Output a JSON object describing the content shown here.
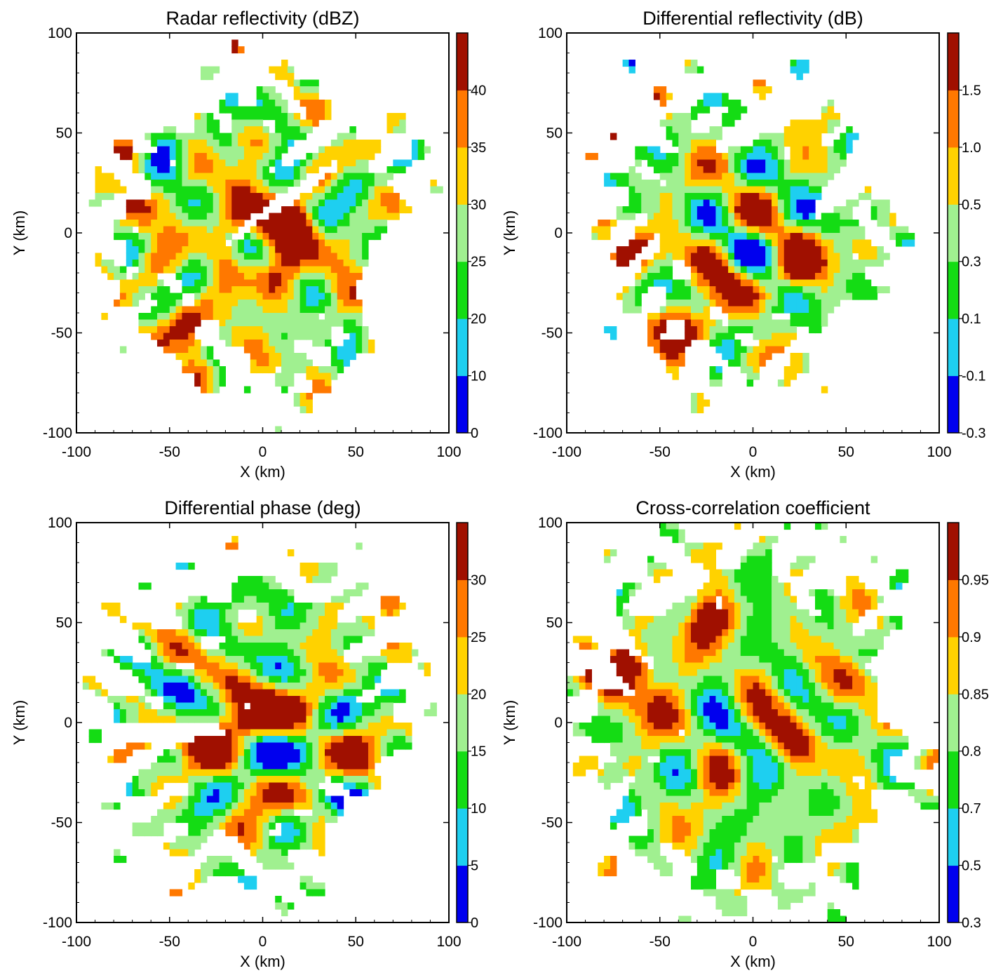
{
  "chart_data": [
    {
      "type": "heatmap",
      "title": "Radar reflectivity (dBZ)",
      "xlabel": "X (km)",
      "ylabel": "Y (km)",
      "xlim": [
        -100,
        100
      ],
      "ylim": [
        -100,
        100
      ],
      "xticks": [
        "-100",
        "-50",
        "0",
        "50",
        "100"
      ],
      "yticks": [
        "-100",
        "-50",
        "0",
        "50",
        "100"
      ],
      "colorbar": {
        "labels": [
          "0",
          "10",
          "20",
          "25",
          "30",
          "35",
          "40"
        ],
        "colors": [
          "#0000ee",
          "#1ecff0",
          "#14dc14",
          "#a0f090",
          "#ffd200",
          "#ff7800",
          "#a01000"
        ]
      },
      "features": {
        "coverage": 0.62,
        "seed": 11,
        "hotspots": [
          [
            -85,
            72,
            1
          ],
          [
            -15,
            8,
            0.9
          ],
          [
            5,
            -20,
            1
          ],
          [
            -40,
            -48,
            0.85
          ],
          [
            20,
            0,
            0.8
          ],
          [
            -60,
            -60,
            0.5
          ],
          [
            -70,
            15,
            0.6
          ],
          [
            10,
            5,
            0.7
          ]
        ],
        "voids": [
          [
            -40,
            65,
            35,
            8,
            0.45
          ],
          [
            40,
            55,
            45,
            6,
            0.6
          ],
          [
            10,
            15,
            40,
            5,
            0.6
          ],
          [
            80,
            -30,
            30,
            40,
            0
          ],
          [
            -95,
            -75,
            20,
            15,
            0
          ],
          [
            -30,
            -90,
            50,
            10,
            0
          ]
        ]
      }
    },
    {
      "type": "heatmap",
      "title": "Differential reflectivity (dB)",
      "xlabel": "X (km)",
      "ylabel": "Y (km)",
      "xlim": [
        -100,
        100
      ],
      "ylim": [
        -100,
        100
      ],
      "xticks": [
        "-100",
        "-50",
        "0",
        "50",
        "100"
      ],
      "yticks": [
        "-100",
        "-50",
        "0",
        "50",
        "100"
      ],
      "colorbar": {
        "labels": [
          "-0.3",
          "-0.1",
          "0.1",
          "0.3",
          "0.5",
          "1.0",
          "1.5"
        ],
        "colors": [
          "#0000ee",
          "#1ecff0",
          "#14dc14",
          "#a0f090",
          "#ffd200",
          "#ff7800",
          "#a01000"
        ]
      },
      "features": {
        "coverage": 0.55,
        "seed": 23,
        "hotspots": [
          [
            -85,
            50,
            1
          ],
          [
            -70,
            -10,
            0.8
          ],
          [
            -40,
            -50,
            0.9
          ],
          [
            25,
            -15,
            0.9
          ],
          [
            -20,
            -20,
            0.7
          ],
          [
            -60,
            -75,
            0.6
          ]
        ],
        "voids": [
          [
            20,
            65,
            50,
            10,
            0.5
          ],
          [
            -10,
            80,
            30,
            8,
            0.3
          ],
          [
            60,
            30,
            40,
            8,
            0.65
          ],
          [
            70,
            -60,
            40,
            30,
            0
          ],
          [
            -90,
            -85,
            20,
            10,
            0
          ]
        ]
      }
    },
    {
      "type": "heatmap",
      "title": "Differential phase (deg)",
      "xlabel": "X (km)",
      "ylabel": "Y (km)",
      "xlim": [
        -100,
        100
      ],
      "ylim": [
        -100,
        100
      ],
      "xticks": [
        "-100",
        "-50",
        "0",
        "50",
        "100"
      ],
      "yticks": [
        "-100",
        "-50",
        "0",
        "50",
        "100"
      ],
      "colorbar": {
        "labels": [
          "0",
          "5",
          "10",
          "15",
          "20",
          "25",
          "30"
        ],
        "colors": [
          "#0000ee",
          "#1ecff0",
          "#14dc14",
          "#a0f090",
          "#ffd200",
          "#ff7800",
          "#a01000"
        ]
      },
      "features": {
        "coverage": 0.58,
        "seed": 37,
        "hotspots": [
          [
            -10,
            0,
            1.3
          ],
          [
            -90,
            75,
            0.7
          ],
          [
            -60,
            -65,
            0.8
          ],
          [
            -30,
            -10,
            0.7
          ],
          [
            30,
            10,
            0.5
          ]
        ],
        "voids": [
          [
            -50,
            65,
            30,
            8,
            0.4
          ],
          [
            -50,
            -5,
            30,
            5,
            0
          ],
          [
            70,
            -60,
            40,
            30,
            0
          ],
          [
            -90,
            -80,
            15,
            10,
            0
          ]
        ]
      }
    },
    {
      "type": "heatmap",
      "title": "Cross-correlation coefficient",
      "xlabel": "X (km)",
      "ylabel": "Y (km)",
      "xlim": [
        -100,
        100
      ],
      "ylim": [
        -100,
        100
      ],
      "xticks": [
        "-100",
        "-50",
        "0",
        "50",
        "100"
      ],
      "yticks": [
        "-100",
        "-50",
        "0",
        "50",
        "100"
      ],
      "colorbar": {
        "labels": [
          "0.3",
          "0.5",
          "0.7",
          "0.8",
          "0.85",
          "0.9",
          "0.95"
        ],
        "colors": [
          "#0000ee",
          "#1ecff0",
          "#14dc14",
          "#a0f090",
          "#ffd200",
          "#ff7800",
          "#a01000"
        ]
      },
      "features": {
        "coverage": 0.7,
        "seed": 53,
        "hotspots": [
          [
            -90,
            25,
            1
          ],
          [
            -65,
            30,
            0.9
          ],
          [
            -25,
            50,
            0.95
          ],
          [
            55,
            20,
            0.8
          ],
          [
            -50,
            10,
            0.6
          ],
          [
            20,
            -10,
            0.6
          ]
        ],
        "voids": [
          [
            -45,
            65,
            25,
            8,
            0.5
          ],
          [
            45,
            80,
            30,
            8,
            0.5
          ],
          [
            85,
            20,
            20,
            30,
            0
          ],
          [
            85,
            -75,
            30,
            25,
            0
          ],
          [
            -80,
            -85,
            25,
            10,
            0
          ]
        ]
      }
    }
  ]
}
